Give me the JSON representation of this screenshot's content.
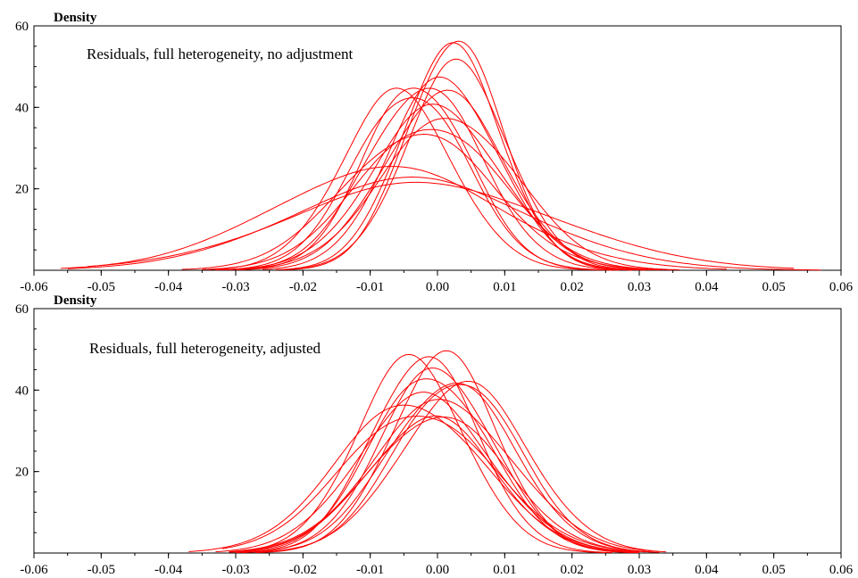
{
  "chart_data": [
    {
      "type": "line",
      "ylabel": "Density",
      "annotation": "Residuals, full heterogeneity, no adjustment",
      "xlim": [
        -0.06,
        0.06
      ],
      "ylim": [
        0,
        60
      ],
      "x_ticks": [
        -0.06,
        -0.05,
        -0.04,
        -0.03,
        -0.02,
        -0.01,
        0.0,
        0.01,
        0.02,
        0.03,
        0.04,
        0.05,
        0.06
      ],
      "x_tick_labels": [
        "-0.06",
        "-0.05",
        "-0.04",
        "-0.03",
        "-0.02",
        "-0.01",
        "0.00",
        "0.01",
        "0.02",
        "0.03",
        "0.04",
        "0.05",
        "0.06"
      ],
      "y_ticks": [
        20,
        40,
        60
      ],
      "y_tick_labels": [
        "20",
        "40",
        "60"
      ],
      "line_color": "#ff0000",
      "series": [
        {
          "mean": 0.0025,
          "sd": 0.0072,
          "peak": 56,
          "min": -0.023,
          "max": 0.029
        },
        {
          "mean": 0.002,
          "sd": 0.0075,
          "peak": 54,
          "min": -0.024,
          "max": 0.028
        },
        {
          "mean": 0.003,
          "sd": 0.0077,
          "peak": 50,
          "min": -0.022,
          "max": 0.03
        },
        {
          "mean": 0.001,
          "sd": 0.0082,
          "peak": 47,
          "min": -0.026,
          "max": 0.031
        },
        {
          "mean": -0.003,
          "sd": 0.0078,
          "peak": 46,
          "min": -0.03,
          "max": 0.027
        },
        {
          "mean": -0.004,
          "sd": 0.0083,
          "peak": 44,
          "min": -0.032,
          "max": 0.026
        },
        {
          "mean": -0.002,
          "sd": 0.0086,
          "peak": 45,
          "min": -0.031,
          "max": 0.029
        },
        {
          "mean": 0.001,
          "sd": 0.009,
          "peak": 43,
          "min": -0.03,
          "max": 0.032
        },
        {
          "mean": -0.006,
          "sd": 0.0084,
          "peak": 43,
          "min": -0.034,
          "max": 0.024
        },
        {
          "mean": 0.0,
          "sd": 0.0095,
          "peak": 40,
          "min": -0.033,
          "max": 0.033
        },
        {
          "mean": 0.002,
          "sd": 0.01,
          "peak": 38,
          "min": -0.032,
          "max": 0.036
        },
        {
          "mean": -0.001,
          "sd": 0.0105,
          "peak": 36,
          "min": -0.035,
          "max": 0.035
        },
        {
          "mean": -0.003,
          "sd": 0.011,
          "peak": 34,
          "min": -0.038,
          "max": 0.033
        },
        {
          "mean": -0.008,
          "sd": 0.017,
          "peak": 25,
          "min": -0.056,
          "max": 0.043
        },
        {
          "mean": -0.004,
          "sd": 0.018,
          "peak": 22,
          "min": -0.055,
          "max": 0.057
        },
        {
          "mean": -0.002,
          "sd": 0.02,
          "peak": 21,
          "min": -0.052,
          "max": 0.053
        }
      ]
    },
    {
      "type": "line",
      "ylabel": "Density",
      "annotation": "Residuals, full heterogeneity, adjusted",
      "xlim": [
        -0.06,
        0.06
      ],
      "ylim": [
        0,
        60
      ],
      "x_ticks": [
        -0.06,
        -0.05,
        -0.04,
        -0.03,
        -0.02,
        -0.01,
        0.0,
        0.01,
        0.02,
        0.03,
        0.04,
        0.05,
        0.06
      ],
      "x_tick_labels": [
        "-0.06",
        "-0.05",
        "-0.04",
        "-0.03",
        "-0.02",
        "-0.01",
        "0.00",
        "0.01",
        "0.02",
        "0.03",
        "0.04",
        "0.05",
        "0.06"
      ],
      "y_ticks": [
        20,
        40,
        60
      ],
      "y_tick_labels": [
        "20",
        "40",
        "60"
      ],
      "line_color": "#ff0000",
      "series": [
        {
          "mean": -0.002,
          "sd": 0.008,
          "peak": 48,
          "min": -0.03,
          "max": 0.026
        },
        {
          "mean": 0.001,
          "sd": 0.008,
          "peak": 48,
          "min": -0.027,
          "max": 0.029
        },
        {
          "mean": -0.004,
          "sd": 0.0082,
          "peak": 47,
          "min": -0.031,
          "max": 0.025
        },
        {
          "mean": 0.0,
          "sd": 0.0085,
          "peak": 45,
          "min": -0.029,
          "max": 0.03
        },
        {
          "mean": -0.001,
          "sd": 0.0088,
          "peak": 44,
          "min": -0.03,
          "max": 0.029
        },
        {
          "mean": 0.003,
          "sd": 0.009,
          "peak": 43,
          "min": -0.027,
          "max": 0.033
        },
        {
          "mean": 0.002,
          "sd": 0.0093,
          "peak": 42,
          "min": -0.029,
          "max": 0.032
        },
        {
          "mean": 0.004,
          "sd": 0.0095,
          "peak": 41,
          "min": -0.026,
          "max": 0.034
        },
        {
          "mean": -0.002,
          "sd": 0.01,
          "peak": 38,
          "min": -0.033,
          "max": 0.03
        },
        {
          "mean": 0.001,
          "sd": 0.0105,
          "peak": 37,
          "min": -0.031,
          "max": 0.032
        },
        {
          "mean": -0.004,
          "sd": 0.0108,
          "peak": 37,
          "min": -0.037,
          "max": 0.028
        },
        {
          "mean": -0.003,
          "sd": 0.011,
          "peak": 35,
          "min": -0.032,
          "max": 0.029
        },
        {
          "mean": 0.0,
          "sd": 0.01,
          "peak": 34,
          "min": -0.03,
          "max": 0.031
        },
        {
          "mean": -0.001,
          "sd": 0.0095,
          "peak": 33,
          "min": -0.031,
          "max": 0.03
        }
      ]
    }
  ]
}
